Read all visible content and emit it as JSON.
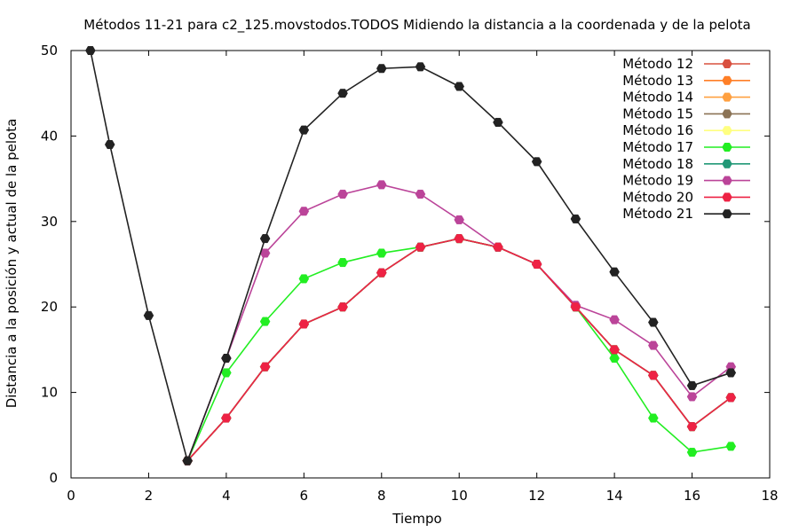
{
  "chart_data": {
    "type": "line",
    "title": "Métodos 11-21 para c2_125.movstodos.TODOS Midiendo la distancia a la coordenada y de la pelota",
    "xlabel": "Tiempo",
    "ylabel": "Distancia a la posición y actual de la pelota",
    "xlim": [
      0,
      18
    ],
    "ylim": [
      0,
      50
    ],
    "xticks": [
      0,
      2,
      4,
      6,
      8,
      10,
      12,
      14,
      16,
      18
    ],
    "yticks": [
      0,
      10,
      20,
      30,
      40,
      50
    ],
    "grid": false,
    "legend_position": "top-right",
    "series": [
      {
        "name": "Método 12",
        "color": "#d9503f",
        "points": [
          [
            3,
            2
          ],
          [
            4,
            7
          ],
          [
            5,
            13
          ],
          [
            6,
            18
          ],
          [
            7,
            20
          ],
          [
            8,
            24
          ],
          [
            9,
            27
          ],
          [
            10,
            28
          ],
          [
            11,
            27
          ],
          [
            12,
            25
          ],
          [
            13,
            20
          ],
          [
            14,
            15
          ],
          [
            15,
            12
          ],
          [
            16,
            6
          ],
          [
            17,
            9.4
          ]
        ]
      },
      {
        "name": "Método 13",
        "color": "#ff7f27",
        "points": [
          [
            3,
            2
          ],
          [
            4,
            7
          ],
          [
            5,
            13
          ],
          [
            6,
            18
          ],
          [
            7,
            20
          ],
          [
            8,
            24
          ],
          [
            9,
            27
          ],
          [
            10,
            28
          ],
          [
            11,
            27
          ],
          [
            12,
            25
          ],
          [
            13,
            20
          ],
          [
            14,
            15
          ],
          [
            15,
            12
          ],
          [
            16,
            6
          ],
          [
            17,
            9.4
          ]
        ]
      },
      {
        "name": "Método 14",
        "color": "#ffa040",
        "points": [
          [
            3,
            2
          ],
          [
            4,
            7
          ],
          [
            5,
            13
          ],
          [
            6,
            18
          ],
          [
            7,
            20
          ],
          [
            8,
            24
          ],
          [
            9,
            27
          ],
          [
            10,
            28
          ],
          [
            11,
            27
          ],
          [
            12,
            25
          ],
          [
            13,
            20
          ],
          [
            14,
            15
          ],
          [
            15,
            12
          ],
          [
            16,
            6
          ],
          [
            17,
            9.4
          ]
        ]
      },
      {
        "name": "Método 15",
        "color": "#8b7355",
        "points": [
          [
            3,
            2
          ],
          [
            4,
            7
          ],
          [
            5,
            13
          ],
          [
            6,
            18
          ],
          [
            7,
            20
          ],
          [
            8,
            24
          ],
          [
            9,
            27
          ],
          [
            10,
            28
          ],
          [
            11,
            27
          ],
          [
            12,
            25
          ],
          [
            13,
            20
          ],
          [
            14,
            15
          ],
          [
            15,
            12
          ],
          [
            16,
            6
          ],
          [
            17,
            9.4
          ]
        ]
      },
      {
        "name": "Método 16",
        "color": "#ffff80",
        "points": [
          [
            3,
            2
          ],
          [
            4,
            7
          ],
          [
            5,
            13
          ],
          [
            6,
            18
          ],
          [
            7,
            20
          ],
          [
            8,
            24
          ],
          [
            9,
            27
          ],
          [
            10,
            28
          ],
          [
            11,
            27
          ],
          [
            12,
            25
          ],
          [
            13,
            20
          ],
          [
            14,
            15
          ],
          [
            15,
            12
          ],
          [
            16,
            6
          ],
          [
            17,
            9.4
          ]
        ]
      },
      {
        "name": "Método 17",
        "color": "#22ee22",
        "points": [
          [
            3,
            2
          ],
          [
            4,
            12.3
          ],
          [
            5,
            18.3
          ],
          [
            6,
            23.3
          ],
          [
            7,
            25.2
          ],
          [
            8,
            26.3
          ],
          [
            9,
            27
          ],
          [
            10,
            28
          ],
          [
            11,
            27
          ],
          [
            12,
            25
          ],
          [
            13,
            20
          ],
          [
            14,
            14
          ],
          [
            15,
            7
          ],
          [
            16,
            3
          ],
          [
            17,
            3.7
          ]
        ]
      },
      {
        "name": "Método 18",
        "color": "#229977",
        "points": [
          [
            3,
            2
          ],
          [
            4,
            7
          ],
          [
            5,
            13
          ],
          [
            6,
            18
          ],
          [
            7,
            20
          ],
          [
            8,
            24
          ],
          [
            9,
            27
          ],
          [
            10,
            28
          ],
          [
            11,
            27
          ],
          [
            12,
            25
          ],
          [
            13,
            20
          ],
          [
            14,
            15
          ],
          [
            15,
            12
          ],
          [
            16,
            6
          ],
          [
            17,
            9.4
          ]
        ]
      },
      {
        "name": "Método 19",
        "color": "#bb4499",
        "points": [
          [
            3,
            2
          ],
          [
            4,
            14
          ],
          [
            5,
            26.3
          ],
          [
            6,
            31.2
          ],
          [
            7,
            33.2
          ],
          [
            8,
            34.3
          ],
          [
            9,
            33.2
          ],
          [
            10,
            30.2
          ],
          [
            11,
            27
          ],
          [
            12,
            25
          ],
          [
            13,
            20.2
          ],
          [
            14,
            18.5
          ],
          [
            15,
            15.5
          ],
          [
            16,
            9.5
          ],
          [
            17,
            13
          ]
        ]
      },
      {
        "name": "Método 20",
        "color": "#ee2244",
        "points": [
          [
            3,
            2
          ],
          [
            4,
            7
          ],
          [
            5,
            13
          ],
          [
            6,
            18
          ],
          [
            7,
            20
          ],
          [
            8,
            24
          ],
          [
            9,
            27
          ],
          [
            10,
            28
          ],
          [
            11,
            27
          ],
          [
            12,
            25
          ],
          [
            13,
            20
          ],
          [
            14,
            15
          ],
          [
            15,
            12
          ],
          [
            16,
            6
          ],
          [
            17,
            9.4
          ]
        ]
      },
      {
        "name": "Método 21",
        "color": "#222222",
        "points": [
          [
            0.5,
            50
          ],
          [
            1,
            39
          ],
          [
            2,
            19
          ],
          [
            3,
            2
          ],
          [
            4,
            14
          ],
          [
            5,
            28
          ],
          [
            6,
            40.7
          ],
          [
            7,
            45
          ],
          [
            8,
            47.9
          ],
          [
            9,
            48.1
          ],
          [
            10,
            45.8
          ],
          [
            11,
            41.6
          ],
          [
            12,
            37
          ],
          [
            13,
            30.3
          ],
          [
            14,
            24.1
          ],
          [
            15,
            18.2
          ],
          [
            16,
            10.8
          ],
          [
            17,
            12.3
          ]
        ]
      }
    ]
  }
}
